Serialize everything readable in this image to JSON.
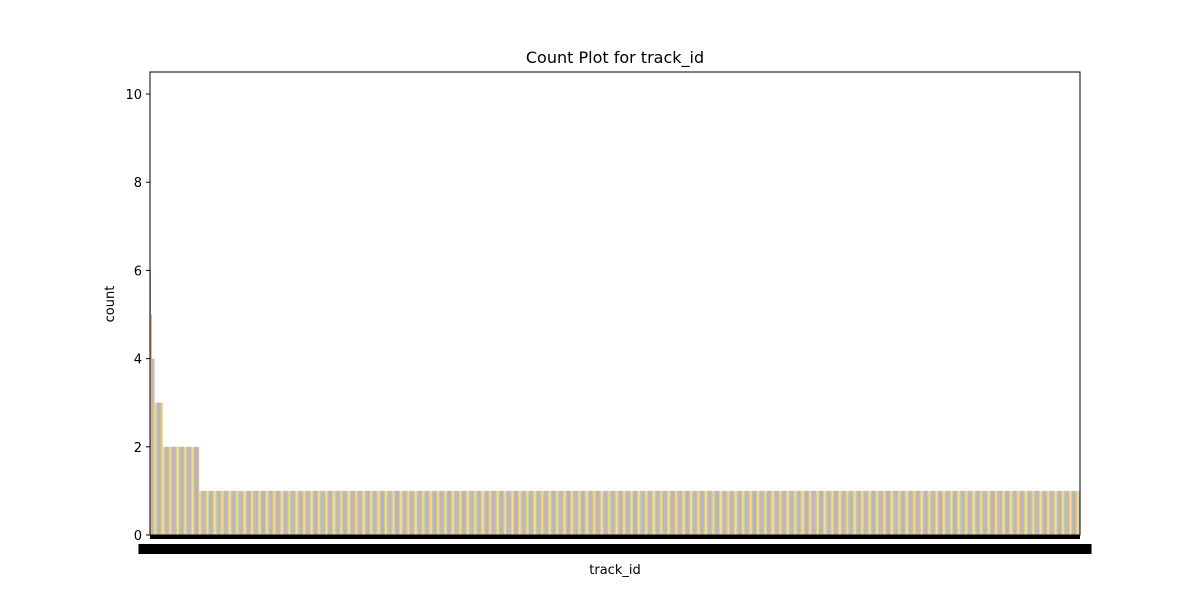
{
  "chart_data": {
    "type": "bar",
    "title": "Count Plot for track_id",
    "xlabel": "track_id",
    "ylabel": "count",
    "ylim": [
      0,
      10.5
    ],
    "yticks": [
      0,
      2,
      4,
      6,
      8,
      10
    ],
    "grid": false,
    "legend": "none",
    "bar_count": 1000,
    "count_groups": [
      {
        "count": 6,
        "bars": 1
      },
      {
        "count": 5,
        "bars": 1
      },
      {
        "count": 4,
        "bars": 3
      },
      {
        "count": 3,
        "bars": 9
      },
      {
        "count": 2,
        "bars": 39
      },
      {
        "count": 1,
        "bars": 947
      }
    ],
    "palette": [
      "#66c2a5",
      "#fc8d62",
      "#8da0cb",
      "#e78ac3",
      "#a6d854",
      "#ffd92f",
      "#e5c494",
      "#b3b3b3"
    ]
  }
}
